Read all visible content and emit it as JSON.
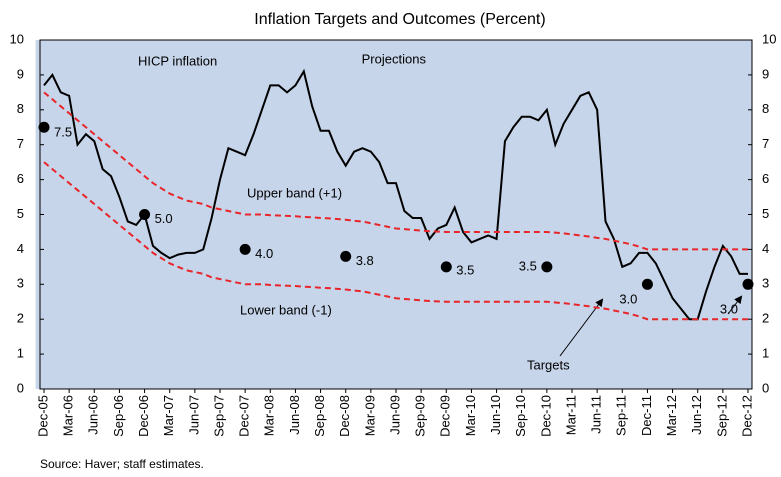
{
  "chart_data": {
    "type": "line",
    "title": "Inflation Targets and Outcomes (Percent)",
    "source": "Source: Haver;  staff estimates.",
    "annotations": [
      "HICP inflation",
      "Upper band (+1)",
      "Lower band (-1)",
      "Targets"
    ],
    "shade": {
      "label": "Projections",
      "from": "Oct-11",
      "to": "Dec-12",
      "color": "#c6d5ea"
    },
    "categories": [
      "Dec-05",
      null,
      null,
      "Mar-06",
      null,
      null,
      "Jun-06",
      null,
      null,
      "Sep-06",
      null,
      null,
      "Dec-06",
      null,
      null,
      "Mar-07",
      null,
      null,
      "Jun-07",
      null,
      null,
      "Sep-07",
      null,
      null,
      "Dec-07",
      null,
      null,
      "Mar-08",
      null,
      null,
      "Jun-08",
      null,
      null,
      "Sep-08",
      null,
      null,
      "Dec-08",
      null,
      null,
      "Mar-09",
      null,
      null,
      "Jun-09",
      null,
      null,
      "Sep-09",
      null,
      null,
      "Dec-09",
      null,
      null,
      "Mar-10",
      null,
      null,
      "Jun-10",
      null,
      null,
      "Sep-10",
      null,
      null,
      "Dec-10",
      null,
      null,
      "Mar-11",
      null,
      null,
      "Jun-11",
      null,
      null,
      "Sep-11",
      null,
      null,
      "Dec-11",
      null,
      null,
      "Mar-12",
      null,
      null,
      "Jun-12",
      null,
      null,
      "Sep-12",
      null,
      null,
      "Dec-12"
    ],
    "series": [
      {
        "name": "HICP inflation",
        "color": "#000000",
        "dash": false,
        "values": [
          8.7,
          9.0,
          8.5,
          8.4,
          7.0,
          7.3,
          7.1,
          6.3,
          6.1,
          5.5,
          4.8,
          4.7,
          5.0,
          4.1,
          3.9,
          3.75,
          3.85,
          3.9,
          3.9,
          4.0,
          4.9,
          6.0,
          6.9,
          6.8,
          6.7,
          7.3,
          8.0,
          8.7,
          8.7,
          8.5,
          8.7,
          9.1,
          8.1,
          7.4,
          7.4,
          6.8,
          6.4,
          6.8,
          6.9,
          6.8,
          6.5,
          5.9,
          5.9,
          5.1,
          4.9,
          4.9,
          4.3,
          4.6,
          4.7,
          5.2,
          4.5,
          4.2,
          4.3,
          4.4,
          4.3,
          7.1,
          7.5,
          7.8,
          7.8,
          7.7,
          8.0,
          7.0,
          7.6,
          8.0,
          8.4,
          8.5,
          8.0,
          4.8,
          4.3,
          3.5,
          3.6,
          3.9,
          3.9,
          3.6,
          3.1,
          2.6,
          2.3,
          2.0,
          2.0,
          2.8,
          3.5,
          4.1,
          3.8,
          3.3,
          3.3
        ]
      },
      {
        "name": "Upper band (+1)",
        "color": "#e8262a",
        "dash": true,
        "values": [
          8.5,
          8.3,
          8.1,
          7.9,
          7.7,
          7.5,
          7.3,
          7.1,
          6.9,
          6.7,
          6.5,
          6.3,
          6.1,
          5.9,
          5.75,
          5.6,
          5.5,
          5.4,
          5.35,
          5.3,
          5.2,
          5.15,
          5.1,
          5.05,
          5.0,
          5.0,
          5.0,
          4.98,
          4.97,
          4.96,
          4.95,
          4.93,
          4.92,
          4.9,
          4.89,
          4.87,
          4.85,
          4.82,
          4.8,
          4.75,
          4.7,
          4.65,
          4.6,
          4.58,
          4.56,
          4.54,
          4.52,
          4.51,
          4.5,
          4.5,
          4.5,
          4.5,
          4.5,
          4.5,
          4.5,
          4.5,
          4.5,
          4.5,
          4.5,
          4.5,
          4.5,
          4.48,
          4.46,
          4.43,
          4.4,
          4.37,
          4.33,
          4.3,
          4.25,
          4.2,
          4.15,
          4.08,
          4.0,
          4.0,
          4.0,
          4.0,
          4.0,
          4.0,
          4.0,
          4.0,
          4.0,
          4.0,
          4.0,
          4.0,
          4.0
        ]
      },
      {
        "name": "Lower band (-1)",
        "color": "#e8262a",
        "dash": true,
        "values": [
          6.5,
          6.3,
          6.1,
          5.9,
          5.7,
          5.5,
          5.3,
          5.1,
          4.9,
          4.7,
          4.5,
          4.3,
          4.1,
          3.9,
          3.75,
          3.6,
          3.5,
          3.4,
          3.35,
          3.3,
          3.2,
          3.15,
          3.1,
          3.05,
          3.0,
          3.0,
          3.0,
          2.98,
          2.97,
          2.96,
          2.95,
          2.93,
          2.92,
          2.9,
          2.89,
          2.87,
          2.85,
          2.82,
          2.8,
          2.75,
          2.7,
          2.65,
          2.6,
          2.58,
          2.56,
          2.54,
          2.52,
          2.51,
          2.5,
          2.5,
          2.5,
          2.5,
          2.5,
          2.5,
          2.5,
          2.5,
          2.5,
          2.5,
          2.5,
          2.5,
          2.5,
          2.48,
          2.46,
          2.43,
          2.4,
          2.37,
          2.33,
          2.3,
          2.25,
          2.2,
          2.15,
          2.08,
          2.0,
          2.0,
          2.0,
          2.0,
          2.0,
          2.0,
          2.0,
          2.0,
          2.0,
          2.0,
          2.0,
          2.0,
          2.0
        ]
      }
    ],
    "targets": {
      "name": "Targets",
      "color": "#000000",
      "x": [
        "Dec-05",
        "Dec-06",
        "Dec-07",
        "Dec-08",
        "Dec-09",
        "Dec-10",
        "Dec-11",
        "Dec-12"
      ],
      "values": [
        7.5,
        5,
        4,
        3.8,
        3.5,
        3.5,
        3,
        3
      ],
      "value_labels": [
        "7.5",
        "5.0",
        "4.0",
        "3.8",
        "3.5",
        "3.5",
        "3.0",
        "3.0"
      ]
    },
    "ylim": [
      0,
      10
    ],
    "yticks": [
      0,
      1,
      2,
      3,
      4,
      5,
      6,
      7,
      8,
      9,
      10
    ],
    "y2lim": [
      0,
      10
    ],
    "y2ticks": [
      0,
      1,
      2,
      3,
      4,
      5,
      6,
      7,
      8,
      9,
      10
    ]
  }
}
